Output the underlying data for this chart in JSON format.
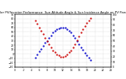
{
  "title": "Solar PV/Inverter Performance  Sun Altitude Angle & Sun Incidence Angle on PV Panels",
  "x_start": 0,
  "x_end": 24,
  "y_left_min": -30,
  "y_left_max": 90,
  "y_right_min": 0,
  "y_right_max": 100,
  "altitude_color": "#0000cc",
  "incidence_color": "#cc0000",
  "background_color": "#ffffff",
  "grid_color": "#b0b0b0",
  "title_fontsize": 2.8,
  "tick_fontsize": 2.2,
  "marker_size": 1.2,
  "altitude_times": [
    5.0,
    5.5,
    6.0,
    6.5,
    7.0,
    7.5,
    8.0,
    8.5,
    9.0,
    9.5,
    10.0,
    10.5,
    11.0,
    11.5,
    12.0,
    12.5,
    13.0,
    13.5,
    14.0,
    14.5,
    15.0,
    15.5,
    16.0,
    16.5,
    17.0,
    17.5,
    18.0,
    18.5,
    19.0
  ],
  "altitude_values": [
    -8,
    -2,
    5,
    12,
    18,
    25,
    30,
    37,
    42,
    48,
    52,
    56,
    58,
    60,
    60,
    59,
    56,
    52,
    48,
    42,
    36,
    29,
    22,
    15,
    9,
    2,
    -3,
    -8,
    -13
  ],
  "incidence_times": [
    5.0,
    5.5,
    6.0,
    6.5,
    7.0,
    7.5,
    8.0,
    8.5,
    9.0,
    9.5,
    10.0,
    10.5,
    11.0,
    11.5,
    12.0,
    12.5,
    13.0,
    13.5,
    14.0,
    14.5,
    15.0,
    15.5,
    16.0,
    16.5,
    17.0,
    17.5,
    18.0,
    18.5,
    19.0
  ],
  "incidence_values": [
    88,
    82,
    75,
    68,
    62,
    55,
    50,
    43,
    38,
    32,
    28,
    24,
    22,
    20,
    20,
    21,
    24,
    28,
    32,
    38,
    44,
    51,
    58,
    65,
    71,
    78,
    83,
    88,
    92
  ],
  "x_ticks": [
    0,
    2,
    4,
    6,
    8,
    10,
    12,
    14,
    16,
    18,
    20,
    22,
    24
  ],
  "y_left_ticks": [
    -30,
    -20,
    -10,
    0,
    10,
    20,
    30,
    40,
    50,
    60,
    70,
    80,
    90
  ],
  "y_right_ticks": [
    0,
    10,
    20,
    30,
    40,
    50,
    60,
    70,
    80,
    90,
    100
  ]
}
